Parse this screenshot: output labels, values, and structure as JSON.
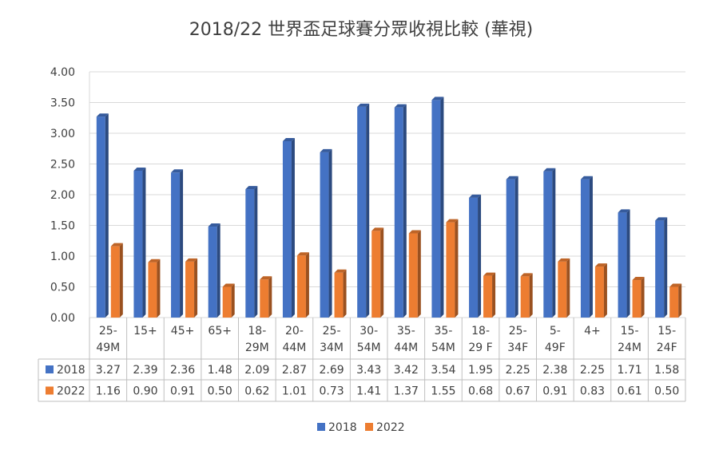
{
  "chart_data": {
    "type": "bar",
    "title": "2018/22  世界盃足球賽分眾收視比較 (華視)",
    "categories": [
      [
        "25-",
        "49M"
      ],
      [
        "15+"
      ],
      [
        "45+"
      ],
      [
        "65+"
      ],
      [
        "18-",
        "29M"
      ],
      [
        "20-",
        "44M"
      ],
      [
        "25-",
        "34M"
      ],
      [
        "30-",
        "54M"
      ],
      [
        "35-",
        "44M"
      ],
      [
        "35-",
        "54M"
      ],
      [
        "18-",
        "29 F"
      ],
      [
        "25-",
        "34F"
      ],
      [
        "5-",
        "49F"
      ],
      [
        "4+"
      ],
      [
        "15-",
        "24M"
      ],
      [
        "15-",
        "24F"
      ]
    ],
    "series": [
      {
        "name": "2018",
        "color": "#4472C4",
        "values": [
          3.27,
          2.39,
          2.36,
          1.48,
          2.09,
          2.87,
          2.69,
          3.43,
          3.42,
          3.54,
          1.95,
          2.25,
          2.38,
          2.25,
          1.71,
          1.58
        ],
        "labels": [
          "3.27",
          "2.39",
          "2.36",
          "1.48",
          "2.09",
          "2.87",
          "2.69",
          "3.43",
          "3.42",
          "3.54",
          "1.95",
          "2.25",
          "2.38",
          "2.25",
          "1.71",
          "1.58"
        ]
      },
      {
        "name": "2022",
        "color": "#ED7D31",
        "values": [
          1.16,
          0.9,
          0.91,
          0.5,
          0.62,
          1.01,
          0.73,
          1.41,
          1.37,
          1.55,
          0.68,
          0.67,
          0.91,
          0.83,
          0.61,
          0.5
        ],
        "labels": [
          "1.16",
          "0.90",
          "0.91",
          "0.50",
          "0.62",
          "1.01",
          "0.73",
          "1.41",
          "1.37",
          "1.55",
          "0.68",
          "0.67",
          "0.91",
          "0.83",
          "0.61",
          "0.50"
        ]
      }
    ],
    "yticks": [
      "0.00",
      "0.50",
      "1.00",
      "1.50",
      "2.00",
      "2.50",
      "3.00",
      "3.50",
      "4.00"
    ],
    "ylim": [
      0,
      4
    ],
    "grid": true,
    "legend": "bottom",
    "data_table": true
  }
}
